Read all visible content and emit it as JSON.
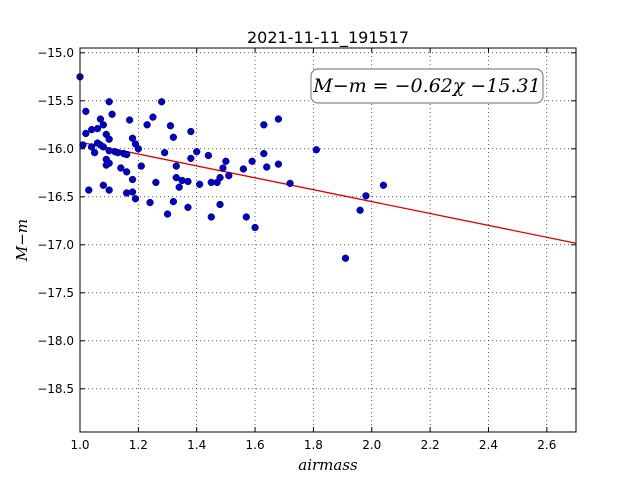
{
  "chart_data": {
    "type": "scatter",
    "title": "2021-11-11_191517",
    "xlabel": "airmass",
    "ylabel": "M−m",
    "xlim": [
      1.0,
      2.7
    ],
    "ylim": [
      -14.95,
      -18.95
    ],
    "y_inverted": true,
    "grid": true,
    "x_ticks": [
      1.0,
      1.2,
      1.4,
      1.6,
      1.8,
      2.0,
      2.2,
      2.4,
      2.6
    ],
    "x_tick_labels": [
      "1.0",
      "1.2",
      "1.4",
      "1.6",
      "1.8",
      "2.0",
      "2.2",
      "2.4",
      "2.6"
    ],
    "y_ticks": [
      -15.0,
      -15.5,
      -16.0,
      -16.5,
      -17.0,
      -17.5,
      -18.0,
      -18.5
    ],
    "y_tick_labels": [
      "−15.0",
      "−15.5",
      "−16.0",
      "−16.5",
      "−17.0",
      "−17.5",
      "−18.0",
      "−18.5"
    ],
    "annotation": "M−m = −0.62χ −15.31",
    "fit": {
      "slope": -0.62,
      "intercept": -15.31,
      "color": "#dd0000"
    },
    "point_color": "#0000cc",
    "series": [
      {
        "points": [
          [
            1.0,
            -15.25
          ],
          [
            1.01,
            -15.96
          ],
          [
            1.02,
            -15.61
          ],
          [
            1.02,
            -15.84
          ],
          [
            1.03,
            -16.43
          ],
          [
            1.04,
            -15.8
          ],
          [
            1.04,
            -15.98
          ],
          [
            1.05,
            -16.04
          ],
          [
            1.06,
            -15.79
          ],
          [
            1.06,
            -15.94
          ],
          [
            1.07,
            -15.69
          ],
          [
            1.07,
            -15.96
          ],
          [
            1.08,
            -15.75
          ],
          [
            1.08,
            -15.98
          ],
          [
            1.08,
            -16.38
          ],
          [
            1.09,
            -16.11
          ],
          [
            1.09,
            -16.17
          ],
          [
            1.09,
            -15.85
          ],
          [
            1.1,
            -16.43
          ],
          [
            1.1,
            -16.15
          ],
          [
            1.1,
            -16.02
          ],
          [
            1.1,
            -15.9
          ],
          [
            1.1,
            -15.51
          ],
          [
            1.11,
            -15.64
          ],
          [
            1.12,
            -16.03
          ],
          [
            1.13,
            -16.04
          ],
          [
            1.14,
            -16.2
          ],
          [
            1.15,
            -16.05
          ],
          [
            1.16,
            -16.06
          ],
          [
            1.16,
            -16.24
          ],
          [
            1.16,
            -16.46
          ],
          [
            1.17,
            -15.7
          ],
          [
            1.18,
            -16.45
          ],
          [
            1.18,
            -16.32
          ],
          [
            1.18,
            -15.89
          ],
          [
            1.19,
            -15.95
          ],
          [
            1.19,
            -16.52
          ],
          [
            1.2,
            -16.0
          ],
          [
            1.21,
            -16.18
          ],
          [
            1.23,
            -15.75
          ],
          [
            1.24,
            -16.56
          ],
          [
            1.25,
            -15.67
          ],
          [
            1.26,
            -16.35
          ],
          [
            1.28,
            -15.51
          ],
          [
            1.29,
            -16.04
          ],
          [
            1.3,
            -16.68
          ],
          [
            1.31,
            -15.76
          ],
          [
            1.32,
            -15.88
          ],
          [
            1.32,
            -16.55
          ],
          [
            1.33,
            -16.18
          ],
          [
            1.33,
            -16.3
          ],
          [
            1.34,
            -16.4
          ],
          [
            1.35,
            -16.33
          ],
          [
            1.37,
            -16.61
          ],
          [
            1.37,
            -16.34
          ],
          [
            1.38,
            -16.1
          ],
          [
            1.38,
            -15.82
          ],
          [
            1.4,
            -16.03
          ],
          [
            1.41,
            -16.37
          ],
          [
            1.44,
            -16.07
          ],
          [
            1.45,
            -16.71
          ],
          [
            1.45,
            -16.35
          ],
          [
            1.47,
            -16.35
          ],
          [
            1.48,
            -16.3
          ],
          [
            1.48,
            -16.58
          ],
          [
            1.49,
            -16.2
          ],
          [
            1.5,
            -16.13
          ],
          [
            1.51,
            -16.28
          ],
          [
            1.56,
            -16.21
          ],
          [
            1.57,
            -16.71
          ],
          [
            1.59,
            -16.13
          ],
          [
            1.6,
            -16.82
          ],
          [
            1.63,
            -16.05
          ],
          [
            1.63,
            -15.75
          ],
          [
            1.64,
            -16.19
          ],
          [
            1.68,
            -15.69
          ],
          [
            1.68,
            -16.16
          ],
          [
            1.72,
            -16.36
          ],
          [
            1.81,
            -16.01
          ],
          [
            1.91,
            -17.14
          ],
          [
            1.96,
            -16.64
          ],
          [
            1.98,
            -16.49
          ],
          [
            2.04,
            -16.38
          ]
        ]
      }
    ]
  }
}
